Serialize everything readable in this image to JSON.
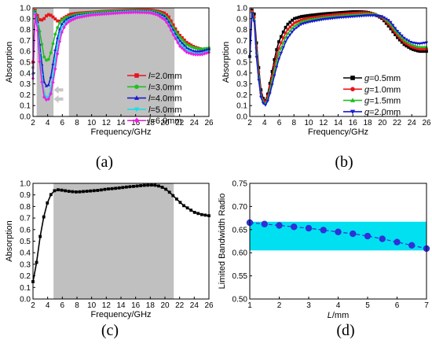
{
  "chart_data": [
    {
      "id": "a",
      "type": "line",
      "panel_label": "(a)",
      "xlabel": "Frequency/GHz",
      "ylabel": "Absorption",
      "xlim": [
        2,
        26
      ],
      "ylim": [
        0,
        1.0
      ],
      "xticks": [
        "2",
        "4",
        "6",
        "8",
        "10",
        "12",
        "14",
        "16",
        "18",
        "20",
        "22",
        "24",
        "26"
      ],
      "yticks": [
        "0.0",
        "0.1",
        "0.2",
        "0.3",
        "0.4",
        "0.5",
        "0.6",
        "0.7",
        "0.8",
        "0.9",
        "1.0"
      ],
      "shaded_bands": [
        [
          2.5,
          4.8
        ],
        [
          6.9,
          21.3
        ]
      ],
      "legend_position": "right",
      "series": [
        {
          "name": "l=2.0mm",
          "legend_prefix": "l",
          "legend_suffix": "=2.0mm",
          "color": "#e8141c",
          "marker": "square",
          "x": [
            2,
            2.3,
            2.6,
            3,
            3.5,
            4,
            4.5,
            5,
            5.5,
            6,
            7,
            8,
            10,
            12,
            14,
            16,
            18,
            19,
            20,
            20.5,
            21,
            21.5,
            22,
            23,
            24,
            25,
            26
          ],
          "y": [
            0.5,
            0.98,
            0.93,
            0.88,
            0.9,
            0.94,
            0.93,
            0.9,
            0.87,
            0.9,
            0.94,
            0.95,
            0.96,
            0.97,
            0.975,
            0.98,
            0.98,
            0.97,
            0.95,
            0.92,
            0.86,
            0.8,
            0.75,
            0.68,
            0.64,
            0.62,
            0.62
          ]
        },
        {
          "name": "l=3.0mm",
          "legend_prefix": "l",
          "legend_suffix": "=3.0mm",
          "color": "#20c020",
          "marker": "circle",
          "x": [
            2,
            2.3,
            2.6,
            3,
            3.5,
            4,
            4.5,
            5,
            5.5,
            6,
            6.5,
            7,
            8,
            10,
            12,
            14,
            16,
            18,
            19,
            20,
            20.5,
            21,
            21.5,
            22,
            23,
            24,
            25,
            26
          ],
          "y": [
            0.45,
            0.97,
            0.9,
            0.75,
            0.55,
            0.5,
            0.6,
            0.75,
            0.85,
            0.89,
            0.91,
            0.92,
            0.94,
            0.955,
            0.965,
            0.97,
            0.975,
            0.97,
            0.96,
            0.93,
            0.89,
            0.83,
            0.78,
            0.73,
            0.66,
            0.63,
            0.62,
            0.63
          ]
        },
        {
          "name": "l=4.0mm",
          "legend_prefix": "l",
          "legend_suffix": "=4.0mm",
          "color": "#1a1ad0",
          "marker": "triangle",
          "x": [
            2,
            2.3,
            2.6,
            3,
            3.5,
            4,
            4.5,
            5,
            5.5,
            6,
            6.5,
            7,
            8,
            10,
            12,
            14,
            16,
            18,
            19,
            20,
            20.5,
            21,
            21.5,
            22,
            23,
            24,
            25,
            26
          ],
          "y": [
            0.4,
            0.96,
            0.88,
            0.6,
            0.32,
            0.26,
            0.38,
            0.6,
            0.78,
            0.86,
            0.89,
            0.91,
            0.93,
            0.945,
            0.955,
            0.965,
            0.97,
            0.965,
            0.95,
            0.92,
            0.87,
            0.81,
            0.75,
            0.7,
            0.63,
            0.6,
            0.6,
            0.62
          ]
        },
        {
          "name": "l=5.0mm",
          "legend_prefix": "l",
          "legend_suffix": "=5.0mm",
          "color": "#12e0e8",
          "marker": "triangle-down",
          "x": [
            2,
            2.3,
            2.6,
            3,
            3.5,
            4,
            4.5,
            5,
            5.5,
            6,
            6.5,
            7,
            8,
            10,
            12,
            14,
            16,
            18,
            19,
            20,
            20.5,
            21,
            21.5,
            22,
            23,
            24,
            25,
            26
          ],
          "y": [
            0.38,
            0.95,
            0.85,
            0.5,
            0.22,
            0.15,
            0.27,
            0.5,
            0.72,
            0.83,
            0.87,
            0.89,
            0.92,
            0.94,
            0.95,
            0.96,
            0.965,
            0.96,
            0.94,
            0.9,
            0.85,
            0.79,
            0.73,
            0.67,
            0.61,
            0.58,
            0.58,
            0.6
          ]
        },
        {
          "name": "l=6.0mm",
          "legend_prefix": "l",
          "legend_suffix": "=6.0mm",
          "color": "#e820e0",
          "marker": "diamond",
          "x": [
            2,
            2.3,
            2.6,
            3,
            3.5,
            4,
            4.5,
            5,
            5.5,
            6,
            6.5,
            7,
            8,
            10,
            12,
            14,
            16,
            18,
            19,
            20,
            20.5,
            21,
            21.5,
            22,
            23,
            24,
            25,
            26
          ],
          "y": [
            0.35,
            0.94,
            0.8,
            0.42,
            0.18,
            0.14,
            0.22,
            0.42,
            0.65,
            0.79,
            0.85,
            0.88,
            0.91,
            0.935,
            0.945,
            0.955,
            0.96,
            0.955,
            0.935,
            0.89,
            0.84,
            0.77,
            0.71,
            0.65,
            0.59,
            0.57,
            0.57,
            0.59
          ]
        }
      ],
      "annotations": [
        {
          "type": "arrow-left",
          "x": 5.7,
          "y": 0.245,
          "color": "#c8c8c8"
        },
        {
          "type": "arrow-left",
          "x": 5.7,
          "y": 0.16,
          "color": "#c8c8c8"
        }
      ]
    },
    {
      "id": "b",
      "type": "line",
      "panel_label": "(b)",
      "xlabel": "Frequency/GHz",
      "ylabel": "Absorption",
      "xlim": [
        2,
        26
      ],
      "ylim": [
        0,
        1.0
      ],
      "xticks": [
        "2",
        "4",
        "6",
        "8",
        "10",
        "12",
        "14",
        "16",
        "18",
        "20",
        "22",
        "24",
        "26"
      ],
      "yticks": [
        "0.0",
        "0.1",
        "0.2",
        "0.3",
        "0.4",
        "0.5",
        "0.6",
        "0.7",
        "0.8",
        "0.9",
        "1.0"
      ],
      "legend_position": "right",
      "series": [
        {
          "name": "g=0.5mm",
          "legend_prefix": "g",
          "legend_suffix": "=0.5mm",
          "color": "#000000",
          "marker": "square",
          "x": [
            2,
            2.3,
            2.6,
            3,
            3.5,
            4,
            4.5,
            5,
            5.5,
            6,
            7,
            8,
            9,
            10,
            12,
            14,
            16,
            17,
            18,
            19,
            20,
            21,
            22,
            23,
            24,
            25,
            26
          ],
          "y": [
            0.55,
            0.98,
            0.95,
            0.6,
            0.25,
            0.12,
            0.22,
            0.4,
            0.58,
            0.7,
            0.84,
            0.9,
            0.92,
            0.93,
            0.945,
            0.955,
            0.965,
            0.965,
            0.96,
            0.94,
            0.9,
            0.82,
            0.73,
            0.66,
            0.62,
            0.6,
            0.6
          ]
        },
        {
          "name": "g=1.0mm",
          "legend_prefix": "g",
          "legend_suffix": "=1.0mm",
          "color": "#e8141c",
          "marker": "circle",
          "x": [
            2,
            2.3,
            2.6,
            3,
            3.5,
            4,
            4.5,
            5,
            5.5,
            6,
            7,
            8,
            9,
            10,
            12,
            14,
            16,
            17,
            18,
            19,
            20,
            21,
            22,
            23,
            24,
            25,
            26
          ],
          "y": [
            0.55,
            0.97,
            0.92,
            0.55,
            0.22,
            0.11,
            0.2,
            0.36,
            0.52,
            0.64,
            0.79,
            0.86,
            0.89,
            0.905,
            0.925,
            0.94,
            0.95,
            0.955,
            0.955,
            0.94,
            0.91,
            0.84,
            0.75,
            0.68,
            0.64,
            0.62,
            0.62
          ]
        },
        {
          "name": "g=1.5mm",
          "legend_prefix": "g",
          "legend_suffix": "=1.5mm",
          "color": "#20c020",
          "marker": "triangle",
          "x": [
            2,
            2.3,
            2.6,
            3,
            3.5,
            4,
            4.5,
            5,
            5.5,
            6,
            7,
            8,
            9,
            10,
            12,
            14,
            16,
            17,
            18,
            19,
            20,
            21,
            22,
            23,
            24,
            25,
            26
          ],
          "y": [
            0.55,
            0.96,
            0.9,
            0.5,
            0.2,
            0.1,
            0.17,
            0.32,
            0.47,
            0.59,
            0.75,
            0.83,
            0.87,
            0.89,
            0.91,
            0.925,
            0.935,
            0.94,
            0.945,
            0.94,
            0.92,
            0.86,
            0.77,
            0.7,
            0.66,
            0.64,
            0.64
          ]
        },
        {
          "name": "g=2.0mm",
          "legend_prefix": "g",
          "legend_suffix": "=2.0mm",
          "color": "#1a1ad0",
          "marker": "triangle-down",
          "x": [
            2,
            2.3,
            2.6,
            3,
            3.5,
            4,
            4.5,
            5,
            5.5,
            6,
            7,
            8,
            9,
            10,
            12,
            14,
            16,
            17,
            18,
            19,
            20,
            21,
            22,
            23,
            24,
            25,
            26
          ],
          "y": [
            0.55,
            0.95,
            0.88,
            0.45,
            0.18,
            0.09,
            0.15,
            0.28,
            0.42,
            0.54,
            0.71,
            0.8,
            0.85,
            0.87,
            0.895,
            0.91,
            0.92,
            0.925,
            0.93,
            0.93,
            0.92,
            0.88,
            0.79,
            0.72,
            0.68,
            0.67,
            0.68
          ]
        }
      ]
    },
    {
      "id": "c",
      "type": "line",
      "panel_label": "(c)",
      "xlabel": "Frequency/GHz",
      "ylabel": "Absorption",
      "xlim": [
        2,
        26
      ],
      "ylim": [
        0,
        1.0
      ],
      "xticks": [
        "2",
        "4",
        "6",
        "8",
        "10",
        "12",
        "14",
        "16",
        "18",
        "20",
        "22",
        "24",
        "26"
      ],
      "yticks": [
        "0.0",
        "0.1",
        "0.2",
        "0.3",
        "0.4",
        "0.5",
        "0.6",
        "0.7",
        "0.8",
        "0.9",
        "1.0"
      ],
      "shaded_bands": [
        [
          4.8,
          21.2
        ]
      ],
      "series": [
        {
          "name": "",
          "color": "#000000",
          "marker": "square",
          "x": [
            2,
            2.5,
            3,
            3.5,
            4,
            4.5,
            5,
            5.5,
            6,
            7,
            8,
            9,
            10,
            11,
            12,
            13,
            14,
            15,
            16,
            17,
            18,
            18.5,
            19,
            19.5,
            20,
            20.5,
            21,
            21.5,
            22,
            22.5,
            23,
            23.5,
            24,
            25,
            26
          ],
          "y": [
            0.15,
            0.32,
            0.55,
            0.72,
            0.84,
            0.91,
            0.94,
            0.945,
            0.94,
            0.93,
            0.925,
            0.93,
            0.935,
            0.94,
            0.95,
            0.955,
            0.962,
            0.97,
            0.975,
            0.982,
            0.985,
            0.985,
            0.98,
            0.97,
            0.955,
            0.93,
            0.9,
            0.87,
            0.84,
            0.81,
            0.79,
            0.77,
            0.75,
            0.73,
            0.72
          ]
        }
      ]
    },
    {
      "id": "d",
      "type": "scatter",
      "panel_label": "(d)",
      "xlabel_prefix": "L",
      "xlabel_suffix": "/mm",
      "ylabel": "Limited Bandwidth Radio",
      "xlim": [
        1,
        7
      ],
      "ylim": [
        0.5,
        0.75
      ],
      "xticks": [
        "1",
        "2",
        "3",
        "4",
        "5",
        "6",
        "7"
      ],
      "yticks": [
        "0.50",
        "0.55",
        "0.60",
        "0.65",
        "0.70",
        "0.75"
      ],
      "band": {
        "y": [
          0.605,
          0.667
        ],
        "color": "#00e0f0"
      },
      "series": [
        {
          "name": "",
          "color": "#3030d8",
          "marker": "circle",
          "x": [
            1,
            1.5,
            2,
            2.5,
            3,
            3.5,
            4,
            4.5,
            5,
            5.5,
            6,
            6.5,
            7
          ],
          "y": [
            0.665,
            0.662,
            0.659,
            0.656,
            0.653,
            0.649,
            0.645,
            0.641,
            0.636,
            0.63,
            0.623,
            0.616,
            0.609
          ]
        }
      ]
    }
  ]
}
